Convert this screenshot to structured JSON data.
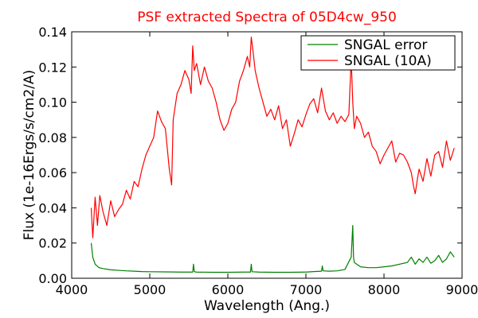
{
  "chart_data": {
    "type": "line",
    "title": "PSF extracted Spectra of 05D4cw_950",
    "title_color": "#ff0000",
    "xlabel": "Wavelength (Ang.)",
    "ylabel": "Flux (1e-16Ergs/s/cm2/A)",
    "xlim": [
      4000,
      9000
    ],
    "ylim": [
      0.0,
      0.14
    ],
    "xticks": [
      4000,
      5000,
      6000,
      7000,
      8000,
      9000
    ],
    "yticks": [
      0.0,
      0.02,
      0.04,
      0.06,
      0.08,
      0.1,
      0.12,
      0.14
    ],
    "xtick_labels": [
      "4000",
      "5000",
      "6000",
      "7000",
      "8000",
      "9000"
    ],
    "ytick_labels": [
      "0.00",
      "0.02",
      "0.04",
      "0.06",
      "0.08",
      "0.10",
      "0.12",
      "0.14"
    ],
    "grid": false,
    "legend_position": "top-right",
    "series": [
      {
        "name": "SNGAL error",
        "color": "#008000",
        "x": [
          4250,
          4270,
          4300,
          4350,
          4400,
          4500,
          4600,
          4700,
          4800,
          4900,
          5000,
          5200,
          5400,
          5550,
          5560,
          5570,
          5600,
          5800,
          6000,
          6200,
          6290,
          6300,
          6310,
          6400,
          6600,
          6800,
          7000,
          7100,
          7200,
          7210,
          7220,
          7300,
          7400,
          7500,
          7580,
          7600,
          7610,
          7620,
          7650,
          7700,
          7800,
          7900,
          8000,
          8100,
          8200,
          8300,
          8350,
          8400,
          8450,
          8500,
          8550,
          8600,
          8650,
          8700,
          8750,
          8800,
          8850,
          8900
        ],
        "y": [
          0.02,
          0.012,
          0.008,
          0.006,
          0.0055,
          0.0048,
          0.0045,
          0.0042,
          0.004,
          0.0038,
          0.0037,
          0.0036,
          0.0035,
          0.0035,
          0.008,
          0.0037,
          0.0035,
          0.0034,
          0.0034,
          0.0035,
          0.0035,
          0.008,
          0.0037,
          0.0035,
          0.0034,
          0.0034,
          0.0035,
          0.0038,
          0.004,
          0.007,
          0.0042,
          0.004,
          0.0042,
          0.005,
          0.012,
          0.03,
          0.012,
          0.009,
          0.008,
          0.0065,
          0.006,
          0.006,
          0.0065,
          0.007,
          0.008,
          0.009,
          0.012,
          0.008,
          0.011,
          0.009,
          0.012,
          0.0085,
          0.01,
          0.013,
          0.009,
          0.011,
          0.015,
          0.012
        ]
      },
      {
        "name": "SNGAL (10A)",
        "color": "#ff0000",
        "x": [
          4250,
          4270,
          4300,
          4330,
          4360,
          4400,
          4450,
          4500,
          4550,
          4600,
          4650,
          4700,
          4750,
          4800,
          4850,
          4900,
          4950,
          5000,
          5050,
          5100,
          5150,
          5200,
          5250,
          5280,
          5300,
          5350,
          5400,
          5450,
          5500,
          5530,
          5550,
          5570,
          5600,
          5650,
          5700,
          5750,
          5800,
          5850,
          5900,
          5950,
          6000,
          6050,
          6100,
          6150,
          6200,
          6250,
          6280,
          6300,
          6320,
          6350,
          6400,
          6450,
          6500,
          6550,
          6600,
          6650,
          6700,
          6750,
          6800,
          6850,
          6900,
          6950,
          7000,
          7050,
          7100,
          7150,
          7200,
          7250,
          7300,
          7350,
          7400,
          7450,
          7500,
          7550,
          7580,
          7600,
          7620,
          7650,
          7700,
          7750,
          7800,
          7850,
          7900,
          7950,
          8000,
          8050,
          8100,
          8150,
          8200,
          8250,
          8300,
          8350,
          8380,
          8400,
          8430,
          8450,
          8500,
          8550,
          8600,
          8650,
          8700,
          8750,
          8800,
          8850,
          8900
        ],
        "y": [
          0.04,
          0.023,
          0.046,
          0.03,
          0.047,
          0.038,
          0.03,
          0.044,
          0.035,
          0.039,
          0.042,
          0.05,
          0.045,
          0.055,
          0.052,
          0.062,
          0.07,
          0.075,
          0.08,
          0.095,
          0.089,
          0.085,
          0.062,
          0.053,
          0.09,
          0.105,
          0.11,
          0.118,
          0.113,
          0.105,
          0.132,
          0.118,
          0.122,
          0.11,
          0.12,
          0.112,
          0.108,
          0.1,
          0.09,
          0.084,
          0.088,
          0.096,
          0.1,
          0.112,
          0.118,
          0.126,
          0.12,
          0.137,
          0.13,
          0.118,
          0.108,
          0.1,
          0.092,
          0.096,
          0.09,
          0.098,
          0.085,
          0.09,
          0.075,
          0.082,
          0.09,
          0.086,
          0.093,
          0.099,
          0.102,
          0.094,
          0.108,
          0.095,
          0.09,
          0.094,
          0.088,
          0.092,
          0.089,
          0.093,
          0.125,
          0.1,
          0.085,
          0.092,
          0.088,
          0.08,
          0.083,
          0.075,
          0.072,
          0.065,
          0.07,
          0.074,
          0.078,
          0.066,
          0.071,
          0.07,
          0.066,
          0.06,
          0.052,
          0.048,
          0.057,
          0.062,
          0.055,
          0.068,
          0.058,
          0.07,
          0.072,
          0.063,
          0.078,
          0.067,
          0.074
        ]
      }
    ]
  }
}
